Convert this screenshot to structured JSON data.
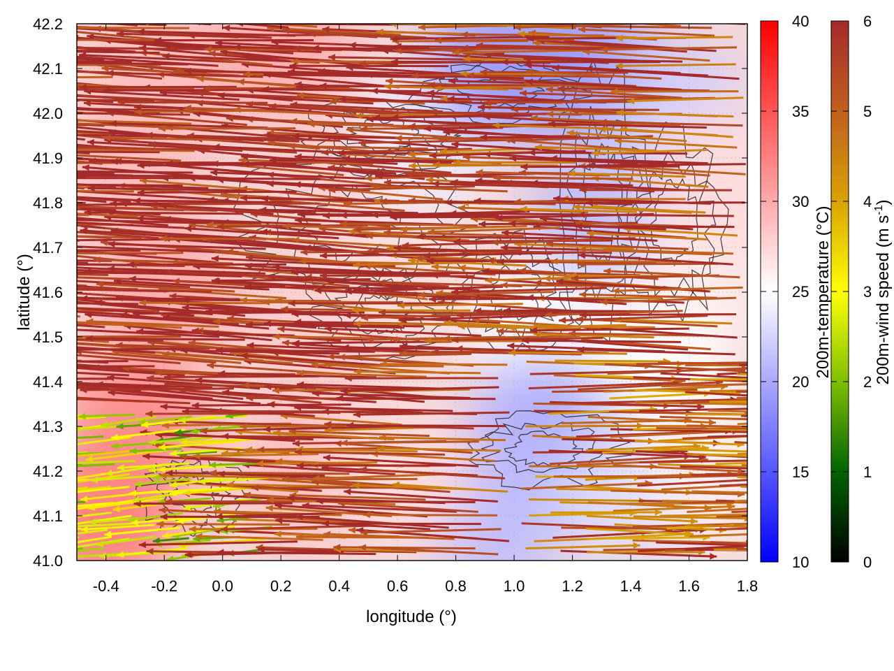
{
  "chart_data": {
    "type": "heatmap",
    "title": "",
    "xlabel": "longitude (°)",
    "ylabel": "latitude (°)",
    "xlim": [
      -0.5,
      1.8
    ],
    "ylim": [
      41.0,
      42.2
    ],
    "x_ticks": [
      "-0.4",
      "-0.2",
      "0.0",
      "0.2",
      "0.4",
      "0.6",
      "0.8",
      "1.0",
      "1.2",
      "1.4",
      "1.6",
      "1.8"
    ],
    "x_tick_values": [
      -0.4,
      -0.2,
      0.0,
      0.2,
      0.4,
      0.6,
      0.8,
      1.0,
      1.2,
      1.4,
      1.6,
      1.8
    ],
    "y_ticks": [
      "41.0",
      "41.1",
      "41.2",
      "41.3",
      "41.4",
      "41.5",
      "41.6",
      "41.7",
      "41.8",
      "41.9",
      "42.0",
      "42.1",
      "42.2"
    ],
    "y_tick_values": [
      41.0,
      41.1,
      41.2,
      41.3,
      41.4,
      41.5,
      41.6,
      41.7,
      41.8,
      41.9,
      42.0,
      42.1,
      42.2
    ],
    "grid": true,
    "temperature_colorbar": {
      "label": "200m-temperature (°C)",
      "range": [
        10,
        40
      ],
      "ticks": [
        "10",
        "15",
        "20",
        "25",
        "30",
        "35",
        "40"
      ],
      "tick_values": [
        10,
        15,
        20,
        25,
        30,
        35,
        40
      ],
      "colors": [
        "#0000ff",
        "#ffffff",
        "#ff0000"
      ]
    },
    "wind_colorbar": {
      "label": "200m-wind speed (m s",
      "label_sup": "-1",
      "label_end": ")",
      "range": [
        0,
        6
      ],
      "ticks": [
        "0",
        "1",
        "2",
        "3",
        "4",
        "5",
        "6"
      ],
      "tick_values": [
        0,
        1,
        2,
        3,
        4,
        5,
        6
      ],
      "colors": [
        "#000000",
        "#006400",
        "#7fbf00",
        "#ffff00",
        "#d9a300",
        "#c06020",
        "#a52a2a"
      ]
    },
    "temperature_field": [
      {
        "lon": -0.4,
        "lat": 41.1,
        "temp": 33
      },
      {
        "lon": -0.3,
        "lat": 41.3,
        "temp": 32
      },
      {
        "lon": -0.2,
        "lat": 41.6,
        "temp": 30
      },
      {
        "lon": -0.3,
        "lat": 41.9,
        "temp": 29
      },
      {
        "lon": -0.2,
        "lat": 42.1,
        "temp": 29
      },
      {
        "lon": 0.2,
        "lat": 42.15,
        "temp": 30
      },
      {
        "lon": 0.4,
        "lat": 41.9,
        "temp": 28
      },
      {
        "lon": 0.3,
        "lat": 41.5,
        "temp": 28
      },
      {
        "lon": 0.3,
        "lat": 41.2,
        "temp": 29
      },
      {
        "lon": 0.6,
        "lat": 41.65,
        "temp": 27
      },
      {
        "lon": 0.7,
        "lat": 41.95,
        "temp": 24
      },
      {
        "lon": 0.95,
        "lat": 42.1,
        "temp": 19
      },
      {
        "lon": 1.25,
        "lat": 42.1,
        "temp": 19
      },
      {
        "lon": 1.3,
        "lat": 41.75,
        "temp": 21
      },
      {
        "lon": 1.1,
        "lat": 41.5,
        "temp": 25
      },
      {
        "lon": 1.55,
        "lat": 42.0,
        "temp": 22
      },
      {
        "lon": 1.6,
        "lat": 41.6,
        "temp": 26
      },
      {
        "lon": 1.5,
        "lat": 41.4,
        "temp": 25
      },
      {
        "lon": 1.1,
        "lat": 41.3,
        "temp": 20
      },
      {
        "lon": 0.95,
        "lat": 41.1,
        "temp": 21
      },
      {
        "lon": 1.4,
        "lat": 41.15,
        "temp": 23
      },
      {
        "lon": 1.7,
        "lat": 41.2,
        "temp": 26
      },
      {
        "lon": 0.6,
        "lat": 41.2,
        "temp": 27
      },
      {
        "lon": 1.7,
        "lat": 41.85,
        "temp": 27
      }
    ],
    "wind_vectors_note": "dense 200m wind arrows; predominantly easterly (pointing west) at ~6 m/s over most of domain, weaker 1-4 m/s easterlies near (0.0, 41.2) and southeast sector",
    "wind_field_regions": [
      {
        "lon_range": [
          -0.5,
          0.8
        ],
        "lat_range": [
          41.35,
          42.2
        ],
        "direction_deg": 190,
        "speed": 6.0
      },
      {
        "lon_range": [
          0.8,
          1.8
        ],
        "lat_range": [
          41.5,
          42.2
        ],
        "direction_deg": 185,
        "speed": 5.5
      },
      {
        "lon_range": [
          1.0,
          1.8
        ],
        "lat_range": [
          41.0,
          41.45
        ],
        "direction_deg": 0,
        "speed": 5.0
      },
      {
        "lon_range": [
          -0.5,
          0.2
        ],
        "lat_range": [
          41.0,
          41.35
        ],
        "direction_deg": 160,
        "speed": 2.5
      }
    ]
  }
}
